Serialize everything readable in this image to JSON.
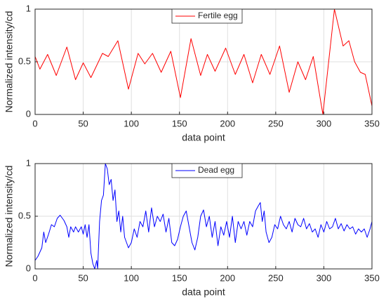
{
  "chart_data": [
    {
      "type": "line",
      "xlabel": "data point",
      "ylabel": "Normalized intensity/cd",
      "xlim": [
        0,
        350
      ],
      "ylim": [
        0,
        1
      ],
      "xticks": [
        0,
        50,
        100,
        150,
        200,
        250,
        300,
        350
      ],
      "yticks": [
        0,
        0.5,
        1
      ],
      "grid": true,
      "legend": "top",
      "series": [
        {
          "name": "Fertile egg",
          "color": "#ff0000",
          "x": [
            0,
            5,
            13,
            22,
            33,
            42,
            50,
            58,
            70,
            76,
            86,
            97,
            107,
            114,
            122,
            131,
            141,
            151,
            162,
            172,
            179,
            187,
            198,
            208,
            217,
            226,
            235,
            244,
            254,
            264,
            273,
            281,
            289,
            299,
            311,
            320,
            326,
            332,
            338,
            343,
            350
          ],
          "values": [
            0.55,
            0.43,
            0.57,
            0.37,
            0.64,
            0.33,
            0.49,
            0.35,
            0.58,
            0.55,
            0.7,
            0.24,
            0.58,
            0.48,
            0.58,
            0.4,
            0.6,
            0.16,
            0.72,
            0.37,
            0.57,
            0.41,
            0.63,
            0.38,
            0.57,
            0.3,
            0.57,
            0.38,
            0.65,
            0.21,
            0.5,
            0.33,
            0.55,
            0.0,
            1.0,
            0.65,
            0.7,
            0.5,
            0.4,
            0.38,
            0.08
          ]
        }
      ]
    },
    {
      "type": "line",
      "xlabel": "data point",
      "ylabel": "Normalized intensity/cd",
      "xlim": [
        0,
        350
      ],
      "ylim": [
        0,
        1
      ],
      "xticks": [
        0,
        50,
        100,
        150,
        200,
        250,
        300,
        350
      ],
      "yticks": [
        0,
        0.5,
        1
      ],
      "grid": true,
      "legend": "top",
      "series": [
        {
          "name": "Dead egg",
          "color": "#0000ff",
          "x": [
            0,
            3,
            7,
            9,
            11,
            14,
            17,
            20,
            23,
            26,
            30,
            33,
            35,
            37,
            40,
            42,
            45,
            48,
            50,
            52,
            54,
            56,
            58,
            60,
            62,
            64,
            65,
            67,
            69,
            71,
            73,
            75,
            77,
            79,
            81,
            83,
            85,
            87,
            89,
            91,
            93,
            95,
            97,
            100,
            103,
            106,
            109,
            112,
            115,
            118,
            121,
            124,
            127,
            130,
            133,
            136,
            139,
            142,
            145,
            148,
            151,
            154,
            157,
            160,
            163,
            166,
            169,
            172,
            175,
            178,
            181,
            184,
            187,
            190,
            193,
            196,
            199,
            202,
            205,
            208,
            211,
            214,
            217,
            220,
            223,
            226,
            229,
            232,
            234,
            236,
            238,
            240,
            243,
            246,
            249,
            252,
            255,
            258,
            261,
            264,
            267,
            270,
            273,
            276,
            279,
            282,
            285,
            288,
            291,
            294,
            297,
            300,
            303,
            306,
            309,
            312,
            315,
            318,
            321,
            324,
            327,
            330,
            333,
            336,
            339,
            342,
            345,
            348,
            350
          ],
          "values": [
            0.08,
            0.12,
            0.2,
            0.35,
            0.25,
            0.33,
            0.42,
            0.4,
            0.48,
            0.51,
            0.46,
            0.4,
            0.3,
            0.4,
            0.35,
            0.4,
            0.35,
            0.4,
            0.33,
            0.42,
            0.3,
            0.42,
            0.15,
            0.05,
            0.0,
            0.08,
            0.0,
            0.45,
            0.65,
            0.7,
            1.0,
            0.95,
            0.8,
            0.85,
            0.65,
            0.75,
            0.45,
            0.55,
            0.35,
            0.5,
            0.3,
            0.25,
            0.2,
            0.25,
            0.38,
            0.3,
            0.45,
            0.4,
            0.55,
            0.35,
            0.58,
            0.4,
            0.5,
            0.45,
            0.52,
            0.35,
            0.48,
            0.25,
            0.22,
            0.28,
            0.4,
            0.5,
            0.55,
            0.4,
            0.25,
            0.18,
            0.3,
            0.5,
            0.56,
            0.4,
            0.5,
            0.3,
            0.45,
            0.22,
            0.4,
            0.32,
            0.45,
            0.3,
            0.5,
            0.25,
            0.45,
            0.38,
            0.45,
            0.32,
            0.45,
            0.4,
            0.55,
            0.6,
            0.63,
            0.45,
            0.55,
            0.35,
            0.25,
            0.3,
            0.42,
            0.38,
            0.5,
            0.42,
            0.38,
            0.45,
            0.35,
            0.48,
            0.42,
            0.4,
            0.48,
            0.38,
            0.43,
            0.35,
            0.38,
            0.3,
            0.42,
            0.35,
            0.45,
            0.38,
            0.4,
            0.48,
            0.38,
            0.43,
            0.36,
            0.42,
            0.38,
            0.4,
            0.33,
            0.38,
            0.35,
            0.38,
            0.3,
            0.38,
            0.45
          ]
        }
      ]
    }
  ]
}
